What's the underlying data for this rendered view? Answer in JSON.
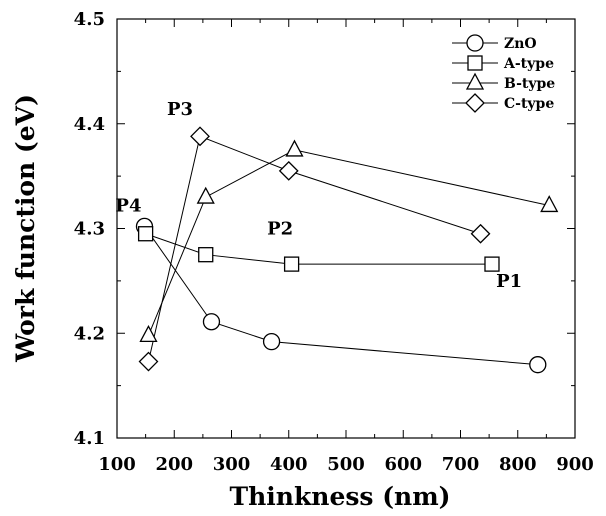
{
  "chart_data": {
    "type": "line",
    "xlabel": "Thinkness (nm)",
    "ylabel": "Work function (eV)",
    "xlim": [
      100,
      900
    ],
    "ylim": [
      4.1,
      4.5
    ],
    "xticks": [
      100,
      200,
      300,
      400,
      500,
      600,
      700,
      800,
      900
    ],
    "yticks": [
      4.1,
      4.2,
      4.3,
      4.4,
      4.5
    ],
    "xtick_labels": [
      "100",
      "200",
      "300",
      "400",
      "500",
      "600",
      "700",
      "800",
      "900"
    ],
    "ytick_labels": [
      "4.1",
      "4.2",
      "4.3",
      "4.4",
      "4.5"
    ],
    "grid": false,
    "legend_position": "top-right",
    "series": [
      {
        "name": "ZnO",
        "marker": "circle",
        "x": [
          148,
          265,
          370,
          835
        ],
        "y": [
          4.302,
          4.211,
          4.192,
          4.17
        ]
      },
      {
        "name": "A-type",
        "marker": "square",
        "x": [
          150,
          255,
          405,
          755
        ],
        "y": [
          4.295,
          4.275,
          4.266,
          4.266
        ]
      },
      {
        "name": "B-type",
        "marker": "triangle",
        "x": [
          155,
          255,
          410,
          855
        ],
        "y": [
          4.198,
          4.33,
          4.375,
          4.322
        ]
      },
      {
        "name": "C-type",
        "marker": "diamond",
        "x": [
          155,
          245,
          400,
          735
        ],
        "y": [
          4.173,
          4.388,
          4.355,
          4.295
        ]
      }
    ],
    "annotations": [
      {
        "text": "P1",
        "x": 785,
        "y": 4.25
      },
      {
        "text": "P2",
        "x": 385,
        "y": 4.3
      },
      {
        "text": "P3",
        "x": 210,
        "y": 4.414
      },
      {
        "text": "P4",
        "x": 120,
        "y": 4.322
      }
    ]
  }
}
